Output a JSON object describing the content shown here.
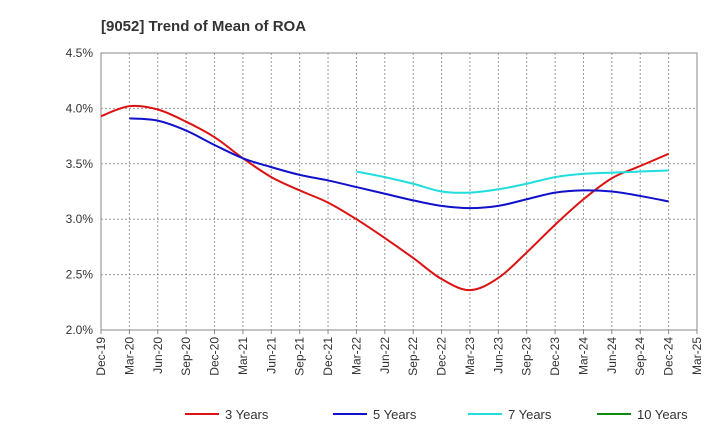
{
  "chart_data": {
    "type": "line",
    "title": "[9052]  Trend of Mean of ROA",
    "x": [
      "Dec-19",
      "Mar-20",
      "Jun-20",
      "Sep-20",
      "Dec-20",
      "Mar-21",
      "Jun-21",
      "Sep-21",
      "Dec-21",
      "Mar-22",
      "Jun-22",
      "Sep-22",
      "Dec-22",
      "Mar-23",
      "Jun-23",
      "Sep-23",
      "Dec-23",
      "Mar-24",
      "Jun-24",
      "Sep-24",
      "Dec-24",
      "Mar-25"
    ],
    "yticks": [
      "2.0%",
      "2.5%",
      "3.0%",
      "3.5%",
      "4.0%",
      "4.5%"
    ],
    "ylim": [
      2.0,
      4.5
    ],
    "grid": true,
    "legend": "bottom",
    "series": [
      {
        "name": "3 Years",
        "color": "#dd1111",
        "values": [
          3.93,
          4.02,
          3.99,
          3.88,
          3.74,
          3.55,
          3.38,
          3.26,
          3.15,
          3.0,
          2.83,
          2.65,
          2.46,
          2.36,
          2.47,
          2.7,
          2.95,
          3.18,
          3.37,
          3.48,
          3.59,
          null
        ]
      },
      {
        "name": "5 Years",
        "color": "#1111cc",
        "values": [
          null,
          3.91,
          3.89,
          3.8,
          3.67,
          3.55,
          3.47,
          3.4,
          3.35,
          3.29,
          3.23,
          3.17,
          3.12,
          3.1,
          3.12,
          3.18,
          3.24,
          3.26,
          3.25,
          3.21,
          3.16,
          null
        ]
      },
      {
        "name": "7 Years",
        "color": "#22dddd",
        "values": [
          null,
          null,
          null,
          null,
          null,
          null,
          null,
          null,
          null,
          3.43,
          3.38,
          3.32,
          3.25,
          3.24,
          3.27,
          3.32,
          3.38,
          3.41,
          3.42,
          3.43,
          3.44,
          null
        ]
      },
      {
        "name": "10 Years",
        "color": "#118811",
        "values": [
          null,
          null,
          null,
          null,
          null,
          null,
          null,
          null,
          null,
          null,
          null,
          null,
          null,
          null,
          null,
          null,
          null,
          null,
          null,
          null,
          null,
          null
        ]
      }
    ]
  }
}
